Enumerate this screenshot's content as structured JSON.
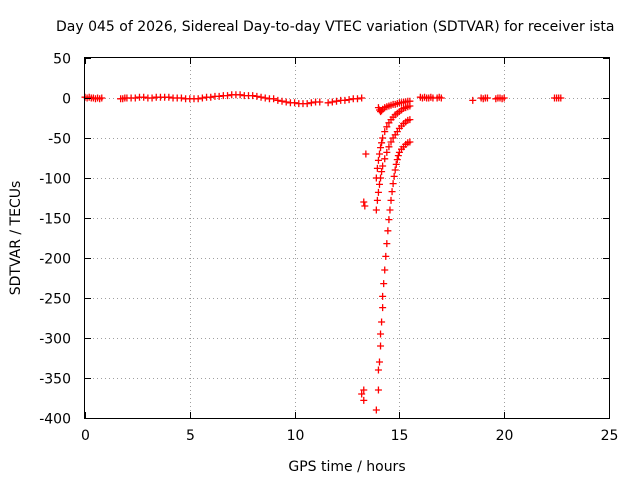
{
  "chart_data": {
    "type": "scatter",
    "title": "Day 045 of 2026, Sidereal Day-to-day VTEC variation (SDTVAR) for receiver ista",
    "xlabel": "GPS time / hours",
    "ylabel": "SDTVAR / TECUs",
    "xlim": [
      0,
      25
    ],
    "ylim": [
      -400,
      50
    ],
    "xticks": [
      0,
      5,
      10,
      15,
      20,
      25
    ],
    "xtick_labels": [
      "0",
      "5",
      "10",
      "15",
      "20",
      "25"
    ],
    "yticks": [
      50,
      0,
      -50,
      -100,
      -150,
      -200,
      -250,
      -300,
      -350,
      -400
    ],
    "ytick_labels": [
      "50",
      "0",
      "-50",
      "-100",
      "-150",
      "-200",
      "-250",
      "-300",
      "-350",
      "-400"
    ],
    "grid": true,
    "legend": "none",
    "marker": "plus",
    "color": "#ff0000",
    "series": [
      {
        "x": [
          0.0,
          0.1,
          0.2,
          0.3,
          0.4,
          0.5,
          0.6,
          0.7,
          0.8,
          1.7,
          1.8,
          1.9,
          2.0,
          2.2,
          2.4,
          2.6,
          2.8,
          3.0,
          3.2,
          3.4,
          3.6,
          3.8,
          4.0,
          4.2,
          4.4,
          4.6,
          4.8,
          5.0,
          5.2,
          5.4,
          5.6,
          5.8,
          6.0,
          6.2,
          6.4,
          6.6,
          6.8,
          7.0,
          7.2,
          7.4,
          7.6,
          7.8,
          8.0,
          8.2,
          8.4,
          8.6,
          8.8,
          9.0,
          9.2,
          9.4,
          9.6,
          9.8,
          10.0,
          10.2,
          10.4,
          10.6,
          10.8,
          11.0,
          11.2,
          11.6,
          11.8,
          12.0,
          12.2,
          12.4,
          12.6,
          12.8,
          13.0,
          13.2,
          16.0,
          16.1,
          16.2,
          16.3,
          16.4,
          16.5,
          16.6,
          16.8,
          16.9,
          17.0,
          18.5,
          18.9,
          19.0,
          19.1,
          19.2,
          19.6,
          19.7,
          19.8,
          19.9,
          20.0,
          22.4,
          22.5,
          22.6,
          22.7
        ],
        "y": [
          1,
          0,
          1,
          0,
          0,
          -1,
          0,
          -1,
          0,
          -1,
          -1,
          0,
          0,
          0,
          0,
          1,
          1,
          0,
          0,
          1,
          1,
          1,
          1,
          0,
          0,
          0,
          -1,
          -1,
          -1,
          -1,
          0,
          1,
          1,
          2,
          2,
          3,
          3,
          4,
          4,
          4,
          3,
          3,
          3,
          2,
          1,
          0,
          -1,
          -1,
          -3,
          -4,
          -5,
          -6,
          -6,
          -7,
          -7,
          -7,
          -6,
          -5,
          -5,
          -6,
          -5,
          -4,
          -3,
          -3,
          -2,
          -1,
          -1,
          0,
          1,
          0,
          1,
          0,
          0,
          1,
          0,
          0,
          1,
          0,
          -3,
          0,
          -1,
          0,
          0,
          -1,
          0,
          0,
          -1,
          0,
          0,
          0,
          0,
          0
        ]
      },
      {
        "x": [
          13.2,
          13.3,
          13.3,
          13.4,
          13.9,
          14.0,
          14.0,
          14.05,
          14.1,
          14.1,
          14.15,
          14.2,
          14.2,
          14.25,
          14.3,
          14.35,
          14.4,
          14.45,
          14.5,
          14.55,
          14.6,
          14.65,
          14.7,
          14.75,
          14.8,
          14.85,
          14.9,
          14.95,
          15.0,
          15.1,
          15.2,
          15.3,
          15.4,
          15.5
        ],
        "y": [
          -370,
          -378,
          -365,
          -70,
          -390,
          -365,
          -340,
          -330,
          -310,
          -295,
          -280,
          -262,
          -248,
          -232,
          -215,
          -198,
          -182,
          -166,
          -152,
          -140,
          -128,
          -117,
          -107,
          -98,
          -90,
          -83,
          -77,
          -72,
          -68,
          -64,
          -61,
          -58,
          -56,
          -55
        ]
      },
      {
        "x": [
          13.3,
          13.35,
          13.9,
          13.95,
          14.0,
          14.05,
          14.1,
          14.15,
          14.2,
          14.3,
          14.4,
          14.5,
          14.6,
          14.7,
          14.8,
          14.9,
          15.0,
          15.1,
          15.2,
          15.3,
          15.4,
          15.5
        ],
        "y": [
          -130,
          -135,
          -140,
          -128,
          -118,
          -108,
          -100,
          -92,
          -85,
          -76,
          -68,
          -61,
          -55,
          -50,
          -46,
          -42,
          -38,
          -35,
          -32,
          -30,
          -28,
          -27
        ]
      },
      {
        "x": [
          13.9,
          13.95,
          14.0,
          14.05,
          14.1,
          14.15,
          14.2,
          14.3,
          14.4,
          14.5,
          14.6,
          14.7,
          14.8,
          14.9,
          15.0,
          15.1,
          15.2,
          15.3,
          15.4,
          15.5
        ],
        "y": [
          -100,
          -88,
          -78,
          -70,
          -62,
          -56,
          -50,
          -42,
          -36,
          -31,
          -27,
          -24,
          -21,
          -19,
          -17,
          -15,
          -13,
          -12,
          -11,
          -10
        ]
      },
      {
        "x": [
          14.0,
          14.05,
          14.1,
          14.15,
          14.2,
          14.3,
          14.4,
          14.5,
          14.6,
          14.7,
          14.8,
          14.9,
          15.0,
          15.1,
          15.2,
          15.3,
          15.4,
          15.5
        ],
        "y": [
          -12,
          -15,
          -17,
          -16,
          -14,
          -12,
          -11,
          -10,
          -9,
          -8,
          -8,
          -7,
          -6,
          -6,
          -5,
          -5,
          -4,
          -4
        ]
      }
    ]
  }
}
